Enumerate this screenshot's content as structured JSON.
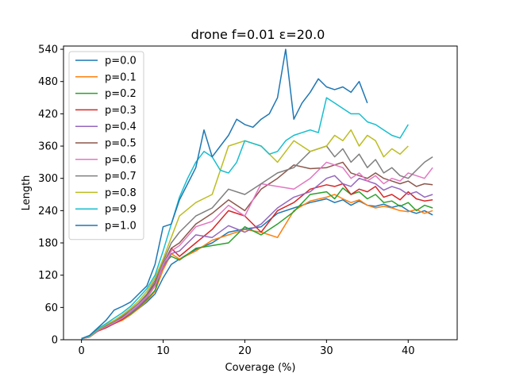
{
  "chart_data": {
    "type": "line",
    "title": "drone f=0.01 ε=20.0",
    "xlabel": "Coverage (%)",
    "ylabel": "Length",
    "xlim": [
      -2.2,
      46.0
    ],
    "ylim": [
      0,
      546
    ],
    "xticks": [
      0,
      10,
      20,
      30,
      40
    ],
    "yticks": [
      0,
      60,
      120,
      180,
      240,
      300,
      360,
      420,
      480,
      540
    ],
    "legend_position": "upper-left",
    "series": [
      {
        "name": "p=0.0",
        "color": "#1f77b4",
        "x": [
          0,
          1,
          2,
          3,
          4,
          5,
          6,
          7,
          8,
          9,
          10,
          11,
          12,
          14,
          16,
          18,
          20,
          22,
          24,
          26,
          28,
          30,
          31,
          32,
          33,
          34,
          35,
          36,
          37,
          38,
          39,
          40,
          41,
          42,
          43
        ],
        "y": [
          2,
          6,
          18,
          25,
          30,
          38,
          48,
          58,
          70,
          85,
          115,
          140,
          150,
          168,
          180,
          200,
          206,
          210,
          235,
          245,
          255,
          262,
          255,
          260,
          250,
          258,
          250,
          248,
          252,
          246,
          250,
          240,
          235,
          240,
          232
        ]
      },
      {
        "name": "p=0.1",
        "color": "#ff7f0e",
        "x": [
          0,
          1,
          2,
          3,
          4,
          5,
          6,
          7,
          8,
          9,
          10,
          11,
          12,
          14,
          16,
          18,
          20,
          22,
          24,
          26,
          28,
          30,
          31,
          32,
          33,
          34,
          35,
          36,
          37,
          38,
          39,
          40,
          41,
          42,
          43
        ],
        "y": [
          2,
          5,
          16,
          23,
          30,
          36,
          46,
          58,
          72,
          90,
          130,
          160,
          150,
          165,
          185,
          195,
          205,
          200,
          190,
          240,
          258,
          265,
          270,
          262,
          255,
          260,
          250,
          245,
          248,
          245,
          240,
          238,
          242,
          235,
          240
        ]
      },
      {
        "name": "p=0.2",
        "color": "#2ca02c",
        "x": [
          0,
          1,
          2,
          3,
          4,
          5,
          6,
          7,
          8,
          9,
          10,
          11,
          12,
          14,
          16,
          18,
          20,
          22,
          24,
          26,
          28,
          30,
          31,
          32,
          33,
          34,
          35,
          36,
          37,
          38,
          39,
          40,
          41,
          42,
          43
        ],
        "y": [
          2,
          6,
          18,
          24,
          31,
          38,
          48,
          60,
          75,
          92,
          140,
          155,
          148,
          170,
          175,
          180,
          210,
          195,
          215,
          238,
          270,
          275,
          262,
          282,
          270,
          275,
          262,
          270,
          255,
          258,
          248,
          255,
          240,
          250,
          245
        ]
      },
      {
        "name": "p=0.3",
        "color": "#d62728",
        "x": [
          0,
          1,
          2,
          3,
          4,
          5,
          6,
          7,
          8,
          9,
          10,
          11,
          12,
          14,
          16,
          18,
          20,
          22,
          24,
          26,
          28,
          30,
          31,
          32,
          33,
          34,
          35,
          36,
          37,
          38,
          39,
          40,
          41,
          42,
          43
        ],
        "y": [
          2,
          5,
          16,
          22,
          30,
          38,
          50,
          62,
          78,
          100,
          140,
          170,
          155,
          180,
          205,
          240,
          230,
          200,
          240,
          255,
          280,
          288,
          285,
          290,
          270,
          280,
          275,
          285,
          265,
          270,
          260,
          275,
          262,
          258,
          260
        ]
      },
      {
        "name": "p=0.4",
        "color": "#9467bd",
        "x": [
          0,
          1,
          2,
          3,
          4,
          5,
          6,
          7,
          8,
          9,
          10,
          11,
          12,
          14,
          16,
          18,
          20,
          22,
          24,
          26,
          28,
          30,
          31,
          32,
          33,
          34,
          35,
          36,
          37,
          38,
          39,
          40,
          41,
          42,
          43
        ],
        "y": [
          2,
          6,
          17,
          24,
          31,
          40,
          50,
          62,
          78,
          100,
          135,
          160,
          165,
          195,
          190,
          212,
          200,
          215,
          245,
          265,
          275,
          300,
          305,
          290,
          285,
          300,
          295,
          290,
          278,
          285,
          280,
          270,
          275,
          265,
          270
        ]
      },
      {
        "name": "p=0.5",
        "color": "#8c564b",
        "x": [
          0,
          1,
          2,
          3,
          4,
          5,
          6,
          7,
          8,
          9,
          10,
          11,
          12,
          14,
          16,
          18,
          20,
          22,
          24,
          26,
          28,
          30,
          31,
          32,
          33,
          34,
          35,
          36,
          37,
          38,
          39,
          40,
          41,
          42,
          43
        ],
        "y": [
          2,
          6,
          18,
          25,
          32,
          42,
          52,
          65,
          82,
          105,
          140,
          170,
          180,
          215,
          235,
          260,
          240,
          280,
          300,
          325,
          318,
          320,
          325,
          330,
          310,
          305,
          300,
          310,
          300,
          295,
          290,
          295,
          285,
          290,
          288
        ]
      },
      {
        "name": "p=0.6",
        "color": "#e377c2",
        "x": [
          0,
          1,
          2,
          3,
          4,
          5,
          6,
          7,
          8,
          9,
          10,
          11,
          12,
          14,
          16,
          18,
          20,
          22,
          24,
          26,
          28,
          30,
          31,
          32,
          33,
          34,
          35,
          36,
          37,
          38,
          39,
          40,
          41,
          42,
          43
        ],
        "y": [
          2,
          5,
          17,
          24,
          32,
          40,
          52,
          65,
          80,
          100,
          140,
          165,
          175,
          210,
          220,
          250,
          230,
          290,
          285,
          280,
          300,
          330,
          325,
          320,
          300,
          310,
          295,
          305,
          290,
          300,
          295,
          310,
          305,
          300,
          320
        ]
      },
      {
        "name": "p=0.7",
        "color": "#7f7f7f",
        "x": [
          0,
          1,
          2,
          3,
          4,
          5,
          6,
          7,
          8,
          9,
          10,
          11,
          12,
          14,
          16,
          18,
          20,
          22,
          24,
          26,
          28,
          30,
          31,
          32,
          33,
          34,
          35,
          36,
          37,
          38,
          39,
          40,
          41,
          42,
          43
        ],
        "y": [
          2,
          6,
          18,
          26,
          34,
          44,
          55,
          68,
          85,
          110,
          145,
          180,
          200,
          230,
          245,
          280,
          270,
          290,
          310,
          320,
          350,
          360,
          340,
          355,
          330,
          345,
          320,
          335,
          310,
          320,
          305,
          300,
          315,
          330,
          340
        ]
      },
      {
        "name": "p=0.8",
        "color": "#bcbd22",
        "x": [
          0,
          1,
          2,
          3,
          4,
          5,
          6,
          7,
          8,
          9,
          10,
          11,
          12,
          14,
          16,
          18,
          20,
          22,
          24,
          26,
          28,
          30,
          31,
          32,
          33,
          34,
          35,
          36,
          37,
          38,
          39,
          40
        ],
        "y": [
          2,
          6,
          19,
          28,
          36,
          46,
          58,
          72,
          90,
          115,
          150,
          190,
          230,
          255,
          270,
          360,
          370,
          360,
          330,
          370,
          350,
          360,
          380,
          370,
          390,
          360,
          380,
          370,
          340,
          355,
          345,
          360
        ]
      },
      {
        "name": "p=0.9",
        "color": "#17becf",
        "x": [
          0,
          1,
          2,
          3,
          4,
          5,
          6,
          7,
          8,
          9,
          10,
          11,
          12,
          13,
          14,
          15,
          16,
          17,
          18,
          19,
          20,
          21,
          22,
          23,
          24,
          25,
          26,
          27,
          28,
          29,
          30,
          31,
          32,
          33,
          34,
          35,
          36,
          37,
          38,
          39,
          40
        ],
        "y": [
          2,
          7,
          20,
          30,
          40,
          50,
          62,
          78,
          95,
          120,
          165,
          215,
          265,
          300,
          330,
          350,
          340,
          315,
          310,
          330,
          370,
          365,
          360,
          345,
          350,
          370,
          380,
          385,
          390,
          385,
          450,
          440,
          430,
          420,
          420,
          405,
          400,
          390,
          380,
          375,
          400
        ]
      },
      {
        "name": "p=1.0",
        "color": "#1f77b4",
        "x": [
          0,
          1,
          2,
          3,
          4,
          5,
          6,
          7,
          8,
          9,
          10,
          11,
          12,
          13,
          14,
          15,
          16,
          17,
          18,
          19,
          20,
          21,
          22,
          23,
          24,
          25,
          26,
          27,
          28,
          29,
          30,
          31,
          32,
          33,
          34,
          35
        ],
        "y": [
          2,
          8,
          22,
          36,
          55,
          62,
          70,
          85,
          100,
          140,
          210,
          215,
          260,
          290,
          320,
          390,
          340,
          360,
          380,
          410,
          400,
          395,
          410,
          420,
          450,
          540,
          410,
          440,
          460,
          485,
          470,
          465,
          470,
          460,
          480,
          440
        ]
      }
    ]
  }
}
